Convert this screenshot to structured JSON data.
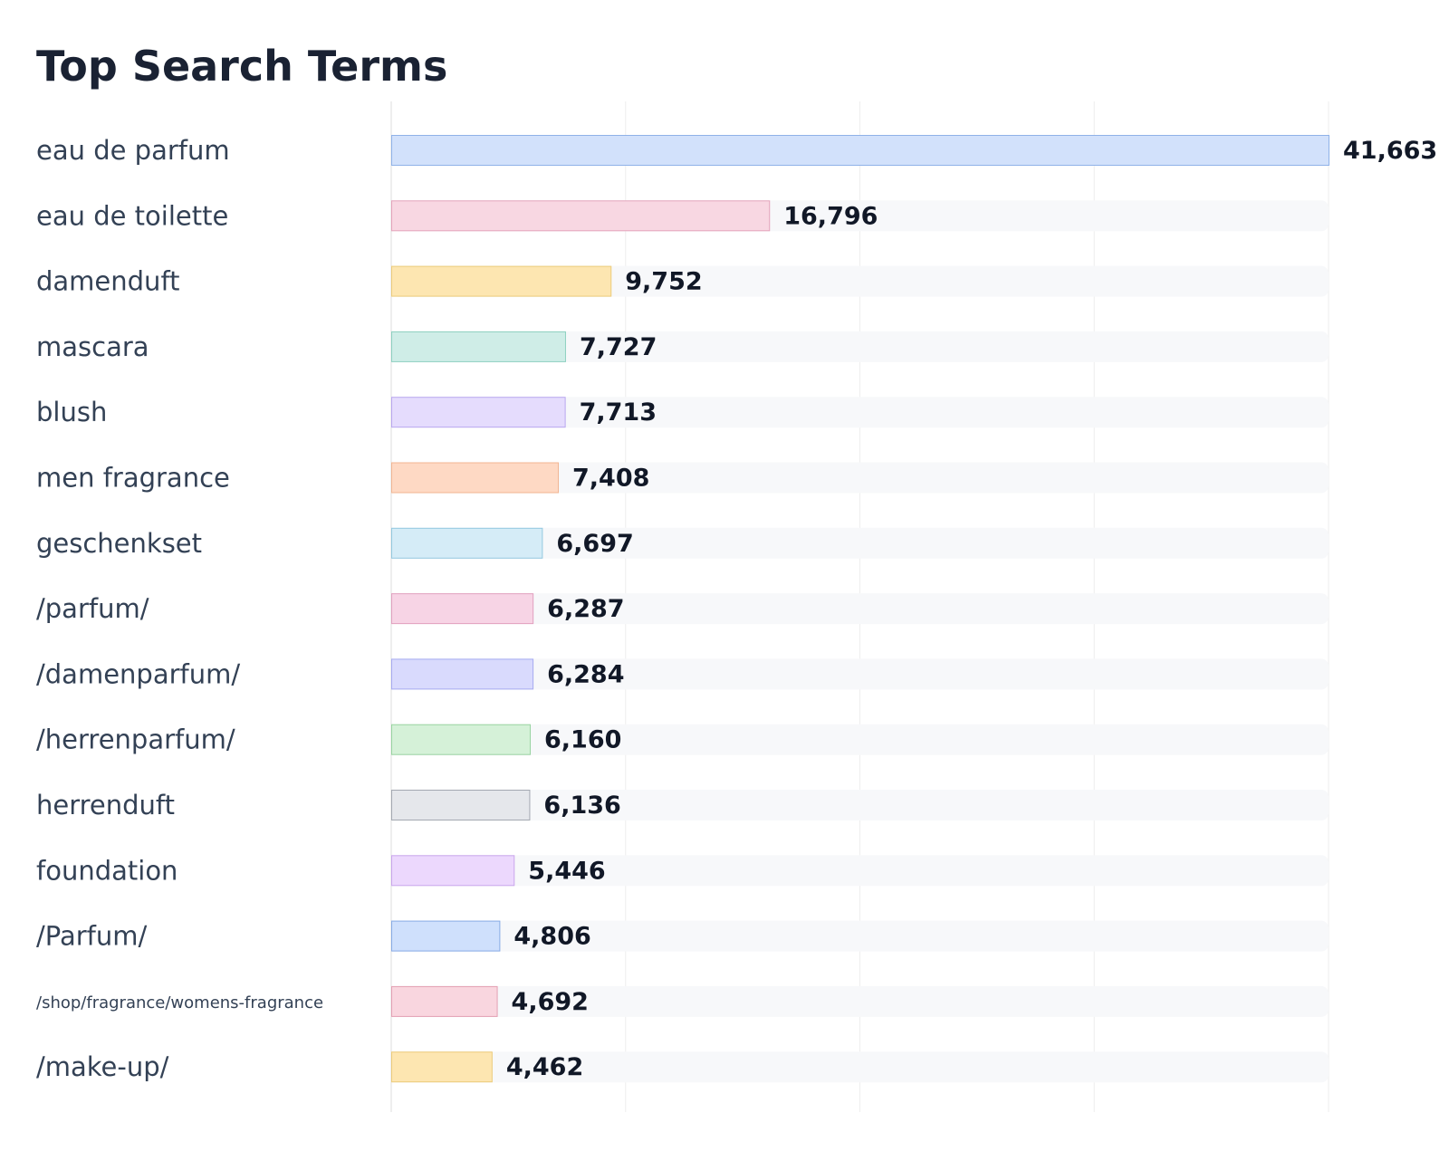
{
  "chart_data": {
    "type": "bar",
    "orientation": "horizontal",
    "title": "Top Search Terms",
    "xlabel": "",
    "ylabel": "",
    "xlim": [
      0,
      41663
    ],
    "grid": true,
    "legend": "none",
    "categories": [
      "eau de parfum",
      "eau de toilette",
      "damenduft",
      "mascara",
      "blush",
      "men fragrance",
      "geschenkset",
      "/parfum/",
      "/damenparfum/",
      "/herrenparfum/",
      "herrenduft",
      "foundation",
      "/Parfum/",
      "/shop/fragrance/womens-fragrance",
      "/make-up/"
    ],
    "values": [
      41663,
      16796,
      9752,
      7727,
      7713,
      7408,
      6697,
      6287,
      6284,
      6160,
      6136,
      5446,
      4806,
      4692,
      4462
    ],
    "value_labels": [
      "41,663",
      "16,796",
      "9,752",
      "7,727",
      "7,713",
      "7,408",
      "6,697",
      "6,287",
      "6,284",
      "6,160",
      "6,136",
      "5,446",
      "4,806",
      "4,692",
      "4,462"
    ],
    "colors": [
      {
        "fill": "#d2e1fb",
        "stroke": "#8fb2e8"
      },
      {
        "fill": "#f8d7e2",
        "stroke": "#e4a3ba"
      },
      {
        "fill": "#fde6b1",
        "stroke": "#eccb7a"
      },
      {
        "fill": "#cfede7",
        "stroke": "#8dd0c0"
      },
      {
        "fill": "#e5dcfd",
        "stroke": "#b9a7ef"
      },
      {
        "fill": "#fed9c4",
        "stroke": "#f1b592"
      },
      {
        "fill": "#d5ecf7",
        "stroke": "#93c8df"
      },
      {
        "fill": "#f7d4e5",
        "stroke": "#e1a1bf"
      },
      {
        "fill": "#d9dafd",
        "stroke": "#a6aaf0"
      },
      {
        "fill": "#d5f1d8",
        "stroke": "#98d3a0"
      },
      {
        "fill": "#e5e7eb",
        "stroke": "#a3a8b1"
      },
      {
        "fill": "#ecd8fd",
        "stroke": "#c9a5ec"
      },
      {
        "fill": "#cfe0fc",
        "stroke": "#87abe5"
      },
      {
        "fill": "#f9d6df",
        "stroke": "#e39fb2"
      },
      {
        "fill": "#fde6b1",
        "stroke": "#eccb7a"
      }
    ],
    "track_color": "#f7f8fa",
    "grid_color": "#eeeeee"
  }
}
